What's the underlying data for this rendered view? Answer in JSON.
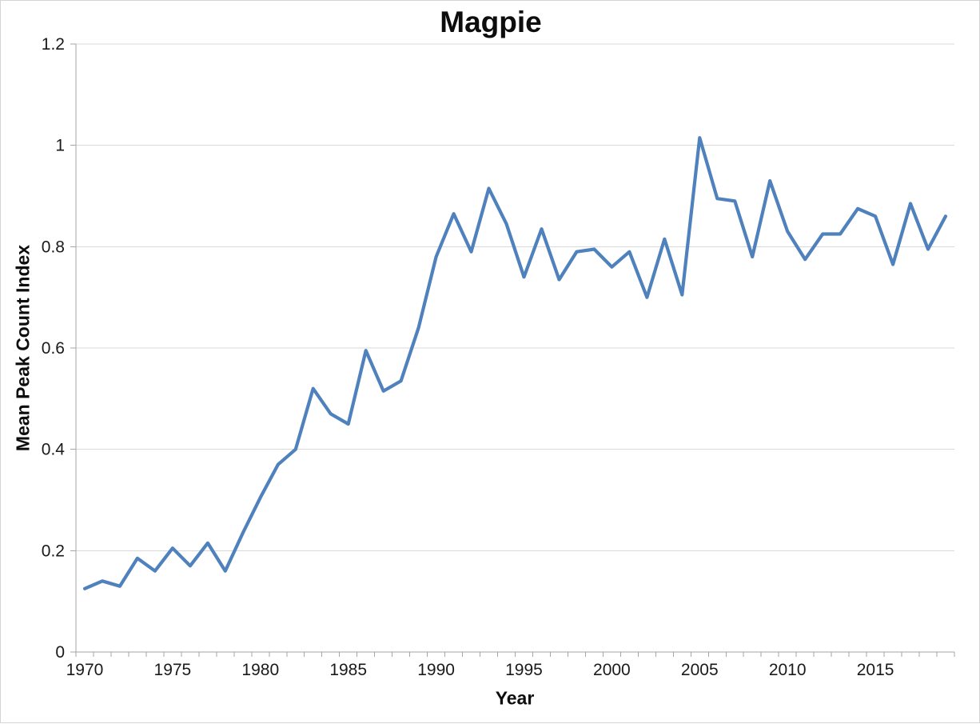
{
  "chart_data": {
    "type": "line",
    "title": "Magpie",
    "xlabel": "Year",
    "ylabel": "Mean Peak Count Index",
    "legend": "none",
    "grid": "horizontal-major-only",
    "ylim": [
      0,
      1.2
    ],
    "ytick_values": [
      0,
      0.2,
      0.4,
      0.6,
      0.8,
      1,
      1.2
    ],
    "ytick_labels": [
      "0",
      "0.2",
      "0.4",
      "0.6",
      "0.8",
      "1",
      "1.2"
    ],
    "xtick_label_years": [
      1970,
      1975,
      1980,
      1985,
      1990,
      1995,
      2000,
      2005,
      2010,
      2015
    ],
    "xtick_labels": [
      "1970",
      "1975",
      "1980",
      "1985",
      "1990",
      "1995",
      "2000",
      "2005",
      "2010",
      "2015"
    ],
    "x": [
      1970,
      1971,
      1972,
      1973,
      1974,
      1975,
      1976,
      1977,
      1978,
      1979,
      1980,
      1981,
      1982,
      1983,
      1984,
      1985,
      1986,
      1987,
      1988,
      1989,
      1990,
      1991,
      1992,
      1993,
      1994,
      1995,
      1996,
      1997,
      1998,
      1999,
      2000,
      2001,
      2002,
      2003,
      2004,
      2005,
      2006,
      2007,
      2008,
      2009,
      2010,
      2011,
      2012,
      2013,
      2014,
      2015,
      2016,
      2017,
      2018,
      2019
    ],
    "series": [
      {
        "name": "Mean Peak Count Index",
        "values": [
          0.125,
          0.14,
          0.13,
          0.185,
          0.16,
          0.205,
          0.17,
          0.215,
          0.16,
          0.235,
          0.305,
          0.37,
          0.4,
          0.52,
          0.47,
          0.45,
          0.595,
          0.515,
          0.535,
          0.64,
          0.78,
          0.865,
          0.79,
          0.915,
          0.845,
          0.74,
          0.835,
          0.735,
          0.79,
          0.795,
          0.76,
          0.79,
          0.7,
          0.815,
          0.705,
          1.015,
          0.895,
          0.89,
          0.78,
          0.93,
          0.83,
          0.775,
          0.825,
          0.825,
          0.875,
          0.86,
          0.765,
          0.885,
          0.795,
          0.86
        ]
      }
    ],
    "colors": {
      "line": "#4F81BD",
      "gridline": "#D9D9D9",
      "axis": "#A6A6A6",
      "tick_text": "#1a1a1a",
      "title_text": "#0d0d0d",
      "chart_border": "#D4D4D4",
      "background": "#FFFFFF"
    }
  }
}
